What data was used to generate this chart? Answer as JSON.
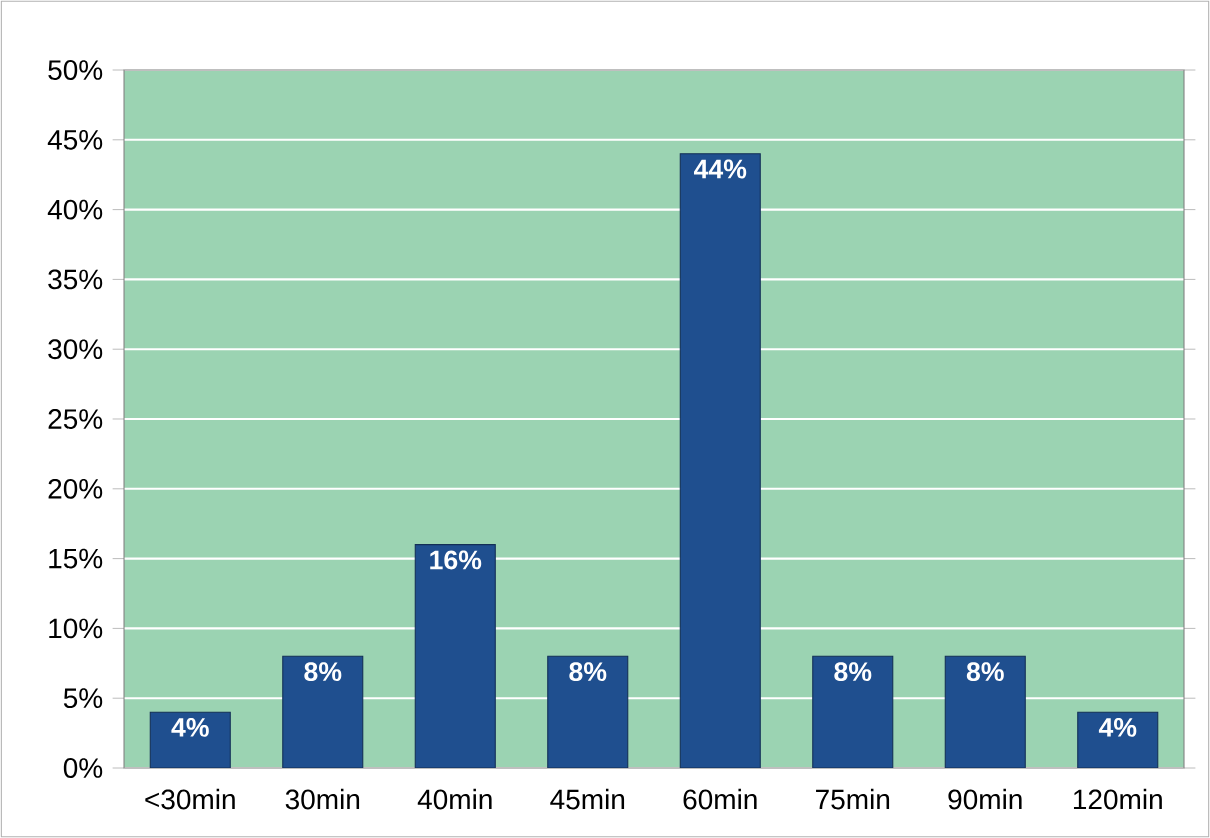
{
  "chart_data": {
    "type": "bar",
    "categories": [
      "<30min",
      "30min",
      "40min",
      "45min",
      "60min",
      "75min",
      "90min",
      "120min"
    ],
    "values": [
      4,
      8,
      16,
      8,
      44,
      8,
      8,
      4
    ],
    "value_labels": [
      "4%",
      "8%",
      "16%",
      "8%",
      "44%",
      "8%",
      "8%",
      "4%"
    ],
    "color": "#1f4f8f",
    "ylim": [
      0,
      50
    ],
    "yticks": [
      {
        "value": 0,
        "label": "0%"
      },
      {
        "value": 5,
        "label": "5%"
      },
      {
        "value": 10,
        "label": "10%"
      },
      {
        "value": 15,
        "label": "15%"
      },
      {
        "value": 20,
        "label": "20%"
      },
      {
        "value": 25,
        "label": "25%"
      },
      {
        "value": 30,
        "label": "30%"
      },
      {
        "value": 35,
        "label": "35%"
      },
      {
        "value": 40,
        "label": "40%"
      },
      {
        "value": 45,
        "label": "45%"
      },
      {
        "value": 50,
        "label": "50%"
      }
    ],
    "grid": "y"
  }
}
